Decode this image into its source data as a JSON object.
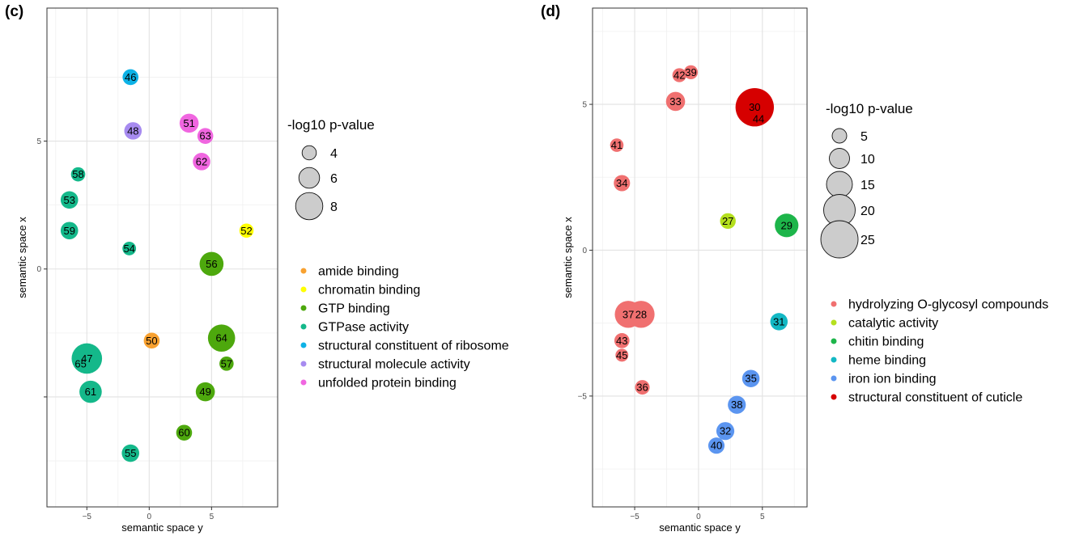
{
  "chart_data": [
    {
      "panel_label": "(c)",
      "type": "scatter",
      "xlabel": "semantic space y",
      "ylabel": "semantic space x",
      "xlim": [
        -8.2,
        10.3
      ],
      "ylim": [
        -9.3,
        10.2
      ],
      "xticks": [
        -5,
        0,
        5
      ],
      "xtick_labels": [
        "−5",
        "0",
        "5"
      ],
      "yticks": [
        -5,
        0,
        5
      ],
      "ytick_labels": [
        "",
        "0",
        "5"
      ],
      "grid": true,
      "size_legend": {
        "title": "-log10 p-value",
        "values": [
          4,
          6,
          8
        ]
      },
      "color_legend": [
        {
          "label": "amide binding",
          "color": "#F8A130"
        },
        {
          "label": "chromatin binding",
          "color": "#FFFF00"
        },
        {
          "label": "GTP binding",
          "color": "#4DA80D"
        },
        {
          "label": "GTPase activity",
          "color": "#14B88A"
        },
        {
          "label": "structural constituent of ribosome",
          "color": "#0DB2E6"
        },
        {
          "label": "structural molecule activity",
          "color": "#A78BF0"
        },
        {
          "label": "unfolded protein binding",
          "color": "#F066E0"
        }
      ],
      "points": [
        {
          "id": "46",
          "x": -1.5,
          "y": 7.5,
          "size": 4.5,
          "group": 4
        },
        {
          "id": "48",
          "x": -1.3,
          "y": 5.4,
          "size": 5.0,
          "group": 5
        },
        {
          "id": "51",
          "x": 3.2,
          "y": 5.7,
          "size": 5.5,
          "group": 6
        },
        {
          "id": "63",
          "x": 4.5,
          "y": 5.2,
          "size": 4.5,
          "group": 6
        },
        {
          "id": "62",
          "x": 4.2,
          "y": 4.2,
          "size": 5.0,
          "group": 6
        },
        {
          "id": "58",
          "x": -5.7,
          "y": 3.7,
          "size": 4.0,
          "group": 3
        },
        {
          "id": "53",
          "x": -6.4,
          "y": 2.7,
          "size": 5.0,
          "group": 3
        },
        {
          "id": "52",
          "x": 7.8,
          "y": 1.5,
          "size": 4.0,
          "group": 1
        },
        {
          "id": "59",
          "x": -6.4,
          "y": 1.5,
          "size": 5.0,
          "group": 3
        },
        {
          "id": "54",
          "x": -1.6,
          "y": 0.8,
          "size": 3.8,
          "group": 3
        },
        {
          "id": "56",
          "x": 5.0,
          "y": 0.2,
          "size": 7.0,
          "group": 2
        },
        {
          "id": "50",
          "x": 0.2,
          "y": -2.8,
          "size": 4.5,
          "group": 0
        },
        {
          "id": "64",
          "x": 5.8,
          "y": -2.7,
          "size": 8.0,
          "group": 2
        },
        {
          "id": "47",
          "x": -5.0,
          "y": -3.5,
          "size": 9.0,
          "group": 3
        },
        {
          "id": "65",
          "x": -5.5,
          "y": -3.7,
          "size": 0,
          "group": 3
        },
        {
          "id": "57",
          "x": 6.2,
          "y": -3.7,
          "size": 4.0,
          "group": 2
        },
        {
          "id": "61",
          "x": -4.7,
          "y": -4.8,
          "size": 6.5,
          "group": 3
        },
        {
          "id": "49",
          "x": 4.5,
          "y": -4.8,
          "size": 5.5,
          "group": 2
        },
        {
          "id": "60",
          "x": 2.8,
          "y": -6.4,
          "size": 4.5,
          "group": 2
        },
        {
          "id": "55",
          "x": -1.5,
          "y": -7.2,
          "size": 5.0,
          "group": 3
        }
      ]
    },
    {
      "panel_label": "(d)",
      "type": "scatter",
      "xlabel": "semantic space y",
      "ylabel": "semantic space x",
      "xlim": [
        -8.3,
        8.5
      ],
      "ylim": [
        -8.8,
        8.3
      ],
      "xticks": [
        -5,
        0,
        5
      ],
      "xtick_labels": [
        "−5",
        "0",
        "5"
      ],
      "yticks": [
        -5,
        0,
        5
      ],
      "ytick_labels": [
        "−5",
        "0",
        "5"
      ],
      "grid": true,
      "size_legend": {
        "title": "-log10 p-value",
        "values": [
          5,
          10,
          15,
          20,
          25
        ]
      },
      "color_legend": [
        {
          "label": "hydrolyzing O-glycosyl compounds",
          "color": "#F07070"
        },
        {
          "label": "catalytic activity",
          "color": "#B5E01E"
        },
        {
          "label": "chitin binding",
          "color": "#1DB54A"
        },
        {
          "label": "heme binding",
          "color": "#13B8C4"
        },
        {
          "label": "iron ion binding",
          "color": "#5B95F0"
        },
        {
          "label": "structural constituent of cuticle",
          "color": "#D60000"
        }
      ],
      "points": [
        {
          "id": "42",
          "x": -1.5,
          "y": 6.0,
          "size": 4.5,
          "group": 0
        },
        {
          "id": "39",
          "x": -0.6,
          "y": 6.1,
          "size": 4.5,
          "group": 0
        },
        {
          "id": "33",
          "x": -1.8,
          "y": 5.1,
          "size": 9.0,
          "group": 0
        },
        {
          "id": "30",
          "x": 4.4,
          "y": 4.9,
          "size": 26.0,
          "group": 5
        },
        {
          "id": "44",
          "x": 4.7,
          "y": 4.5,
          "size": 2.5,
          "group": 5
        },
        {
          "id": "41",
          "x": -6.4,
          "y": 3.6,
          "size": 4.0,
          "group": 0
        },
        {
          "id": "34",
          "x": -6.0,
          "y": 2.3,
          "size": 6.5,
          "group": 0
        },
        {
          "id": "27",
          "x": 2.3,
          "y": 1.0,
          "size": 6.0,
          "group": 1
        },
        {
          "id": "29",
          "x": 6.9,
          "y": 0.85,
          "size": 13.0,
          "group": 2
        },
        {
          "id": "37",
          "x": -5.5,
          "y": -2.2,
          "size": 16.0,
          "group": 0
        },
        {
          "id": "28",
          "x": -4.5,
          "y": -2.2,
          "size": 16.0,
          "group": 0
        },
        {
          "id": "31",
          "x": 6.3,
          "y": -2.45,
          "size": 7.5,
          "group": 3
        },
        {
          "id": "43",
          "x": -6.0,
          "y": -3.1,
          "size": 5.5,
          "group": 0
        },
        {
          "id": "45",
          "x": -6.0,
          "y": -3.6,
          "size": 3.5,
          "group": 0
        },
        {
          "id": "35",
          "x": 4.1,
          "y": -4.4,
          "size": 7.5,
          "group": 4
        },
        {
          "id": "36",
          "x": -4.4,
          "y": -4.7,
          "size": 5.0,
          "group": 0
        },
        {
          "id": "38",
          "x": 3.0,
          "y": -5.3,
          "size": 8.0,
          "group": 4
        },
        {
          "id": "32",
          "x": 2.1,
          "y": -6.2,
          "size": 8.0,
          "group": 4
        },
        {
          "id": "40",
          "x": 1.4,
          "y": -6.7,
          "size": 6.5,
          "group": 4
        }
      ]
    }
  ]
}
